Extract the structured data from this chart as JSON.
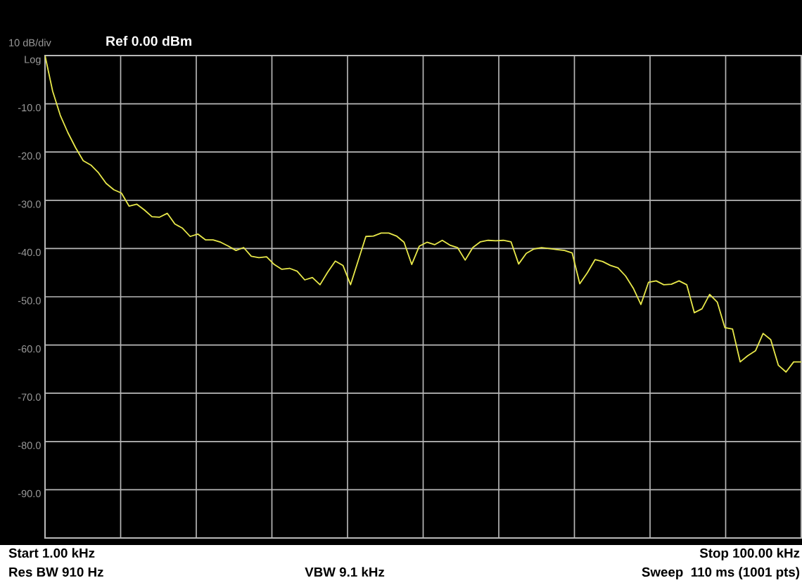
{
  "chart_data": {
    "type": "line",
    "title": "Ref 0.00 dBm",
    "ylabel": "10 dB/div",
    "annotations": [
      "Start 1.00 kHz",
      "Res BW 910 Hz",
      "VBW 9.1 kHz",
      "Stop 100.00 kHz",
      "Sweep  110 ms (1001 pts)"
    ],
    "categories": [
      null,
      null,
      null,
      null,
      null,
      null,
      null,
      null,
      null,
      null,
      null,
      null,
      null,
      null,
      null,
      null,
      null,
      null,
      null,
      null,
      null,
      null,
      null,
      null,
      null,
      null,
      null,
      null,
      null,
      null,
      null,
      null,
      null,
      null,
      null,
      null,
      null,
      null,
      null,
      null,
      null,
      null,
      null,
      null,
      null,
      null,
      null,
      null,
      null,
      null,
      null,
      null,
      null,
      null,
      null,
      null,
      null,
      null,
      null,
      null,
      null,
      null,
      null,
      null,
      null,
      null,
      null,
      null,
      null,
      null,
      null,
      null,
      null,
      null,
      null,
      null,
      null,
      null,
      null,
      null,
      null,
      null,
      null,
      null,
      null,
      null,
      null,
      null,
      null,
      null,
      null,
      null,
      null,
      null,
      null,
      null,
      null,
      null,
      null,
      null
    ],
    "ylim": [
      -100,
      0
    ],
    "yticks": [
      {
        "value": 0,
        "label": "Log"
      },
      {
        "value": -10,
        "label": "-10.0"
      },
      {
        "value": -20,
        "label": "-20.0"
      },
      {
        "value": -30,
        "label": "-30.0"
      },
      {
        "value": -40,
        "label": "-40.0"
      },
      {
        "value": -50,
        "label": "-50.0"
      },
      {
        "value": -60,
        "label": "-60.0"
      },
      {
        "value": -70,
        "label": "-70.0"
      },
      {
        "value": -80,
        "label": "-80.0"
      },
      {
        "value": -90,
        "label": "-90.0"
      },
      {
        "value": -100,
        "label": null
      }
    ],
    "tick_labels": "y",
    "grid": true,
    "marker": "none",
    "line_style": "solid",
    "series": [
      {
        "color": "#e8e84a",
        "values": [
          0,
          -7.4,
          -12.4,
          -16.0,
          -19.1,
          -21.8,
          -22.7,
          -24.3,
          -26.5,
          -27.8,
          -28.5,
          -31.2,
          -30.8,
          -32.0,
          -33.4,
          -33.5,
          -32.7,
          -34.9,
          -35.8,
          -37.5,
          -37.0,
          -38.2,
          -38.2,
          -38.7,
          -39.5,
          -40.4,
          -39.8,
          -41.6,
          -41.9,
          -41.7,
          -43.3,
          -44.3,
          -44.1,
          -44.7,
          -46.5,
          -46.0,
          -47.5,
          -44.9,
          -42.6,
          -43.5,
          -47.5,
          -42.5,
          -37.5,
          -37.4,
          -36.8,
          -36.8,
          -37.4,
          -38.7,
          -43.3,
          -39.5,
          -38.7,
          -39.2,
          -38.3,
          -39.3,
          -39.8,
          -42.4,
          -39.8,
          -38.6,
          -38.3,
          -38.4,
          -38.3,
          -38.6,
          -43.2,
          -41.0,
          -40.1,
          -39.8,
          -40.0,
          -40.2,
          -40.4,
          -40.9,
          -47.3,
          -45.0,
          -42.3,
          -42.7,
          -43.5,
          -44.0,
          -45.7,
          -48.2,
          -51.6,
          -47.0,
          -46.7,
          -47.5,
          -47.4,
          -46.7,
          -47.5,
          -53.3,
          -52.5,
          -49.5,
          -51.1,
          -56.4,
          -56.7,
          -63.5,
          -62.2,
          -61.2,
          -57.6,
          -58.9,
          -64.2,
          -65.6,
          -63.5,
          -63.5
        ]
      }
    ]
  }
}
